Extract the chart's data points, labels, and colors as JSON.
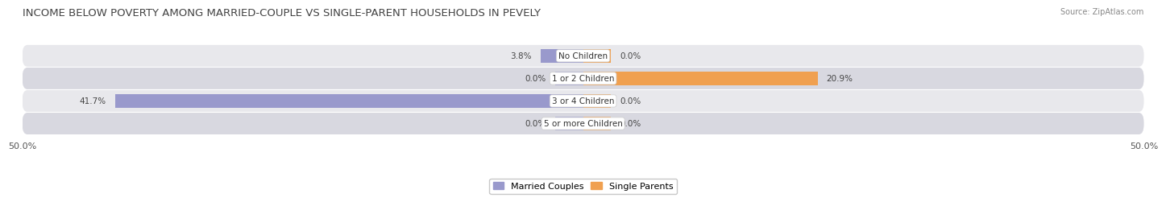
{
  "title": "INCOME BELOW POVERTY AMONG MARRIED-COUPLE VS SINGLE-PARENT HOUSEHOLDS IN PEVELY",
  "source": "Source: ZipAtlas.com",
  "categories": [
    "No Children",
    "1 or 2 Children",
    "3 or 4 Children",
    "5 or more Children"
  ],
  "married_couples": [
    3.8,
    0.0,
    41.7,
    0.0
  ],
  "single_parents": [
    0.0,
    20.9,
    0.0,
    0.0
  ],
  "married_color": "#9999cc",
  "single_color": "#f0a050",
  "bar_height": 0.62,
  "stub_size": 2.5,
  "xlim": [
    -50,
    50
  ],
  "xtick_labels": [
    "50.0%",
    "50.0%"
  ],
  "row_colors": [
    "#e8e8ec",
    "#d8d8e0"
  ],
  "background_main": "#ffffff",
  "legend_married": "Married Couples",
  "legend_single": "Single Parents",
  "title_fontsize": 9.5,
  "label_fontsize": 7.5,
  "category_fontsize": 7.5,
  "source_fontsize": 7
}
